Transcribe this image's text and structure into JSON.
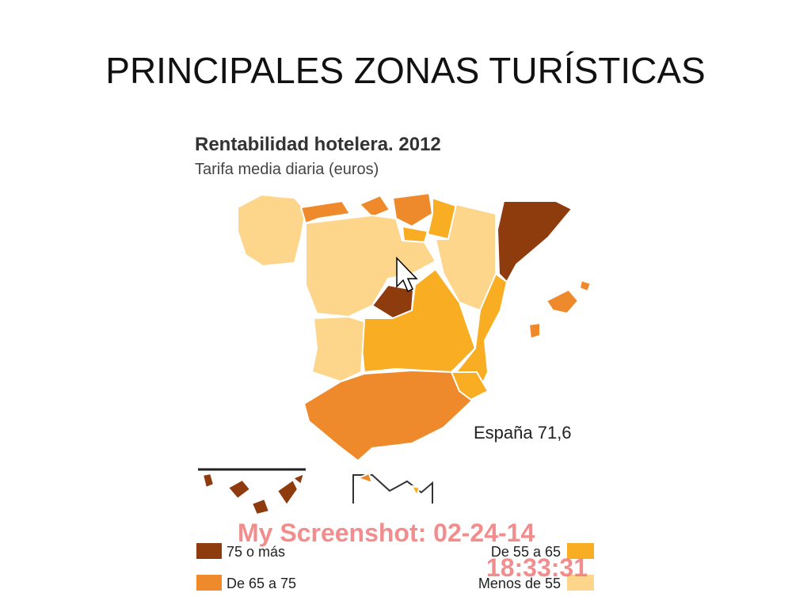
{
  "header": {
    "title": "PRINCIPALES ZONAS TURÍSTICAS"
  },
  "map": {
    "title": "Rentabilidad hotelera. 2012",
    "subtitle": "Tarifa media diaria (euros)",
    "national_average": "España 71,6",
    "legend": [
      {
        "label": "75 o más",
        "color": "#8e3b0e"
      },
      {
        "label": "De 65 a 75",
        "color": "#ef8a2c"
      },
      {
        "label": "De 55 a 65",
        "color": "#f8ad22"
      },
      {
        "label": "Menos de 55",
        "color": "#fdd68c"
      }
    ]
  },
  "watermark": {
    "line1": "My Screenshot: 02-24-14",
    "line2": "18:33:31"
  }
}
